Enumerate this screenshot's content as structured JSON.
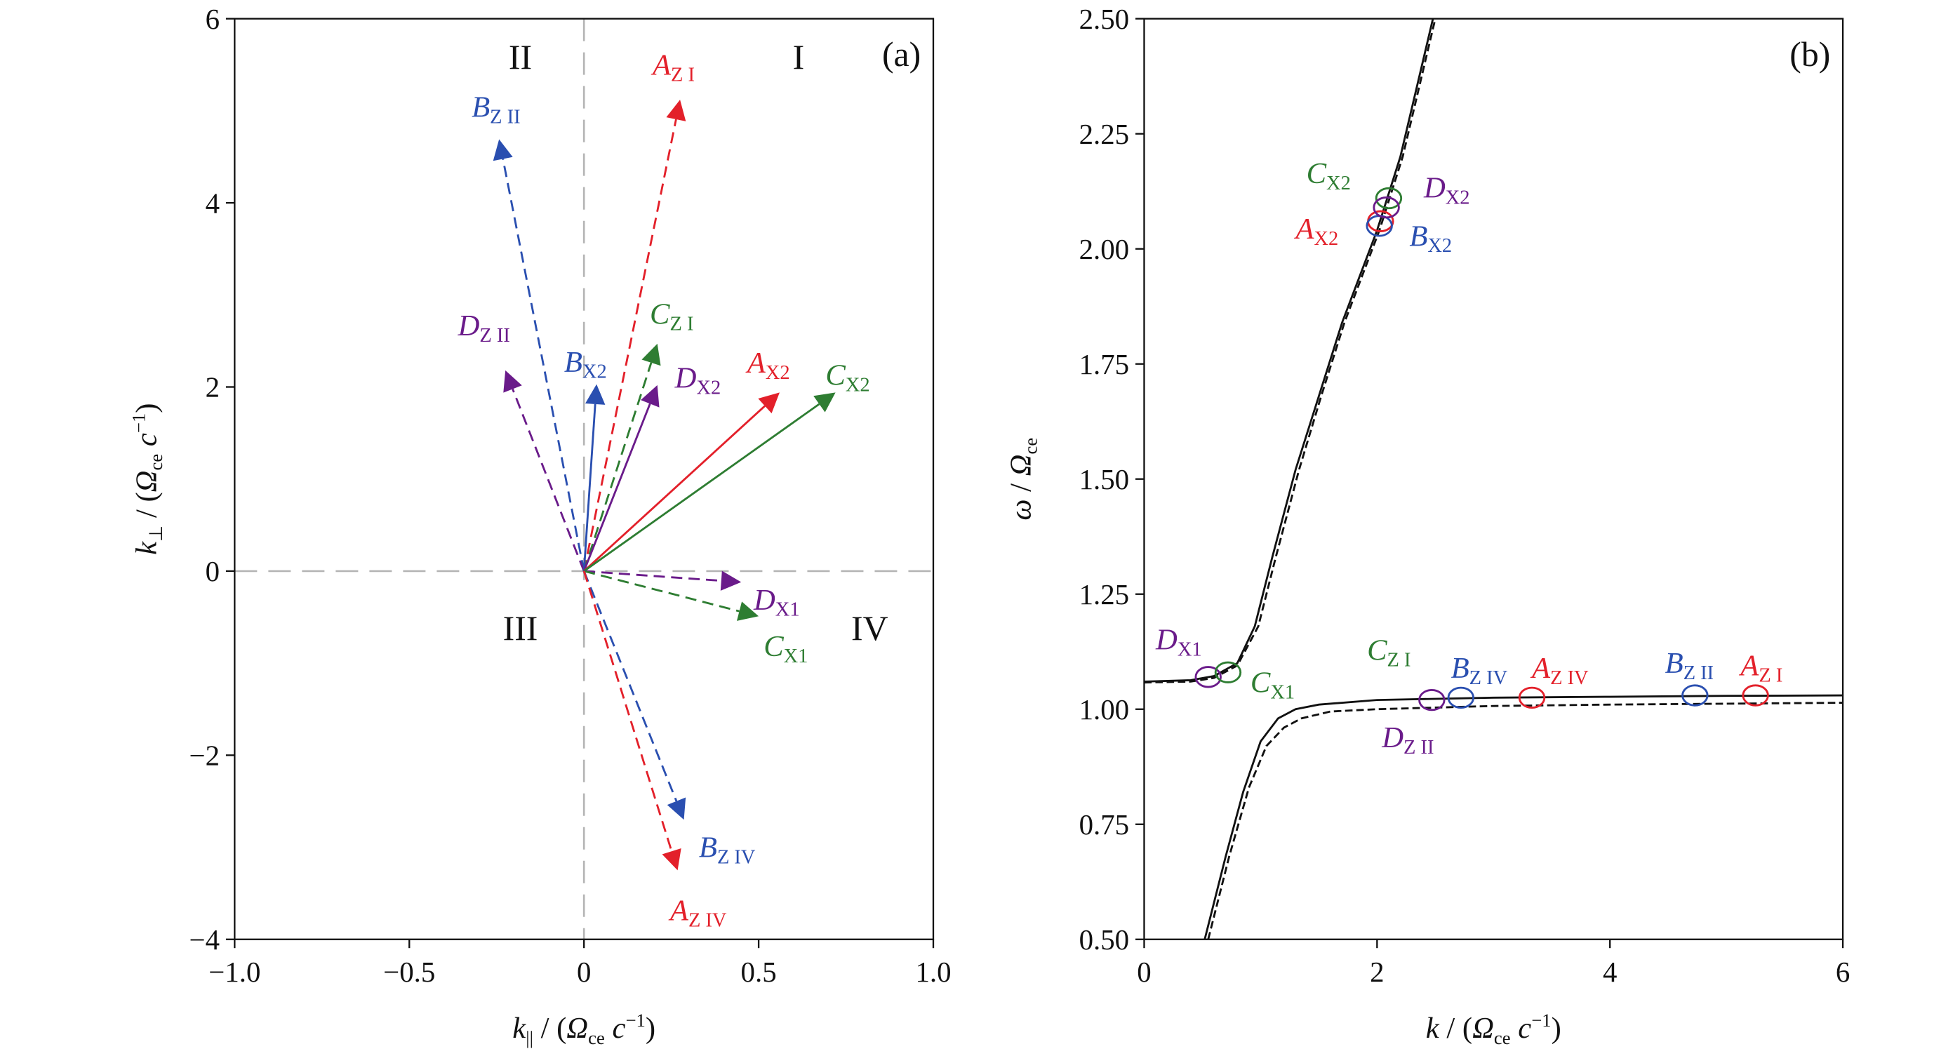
{
  "colors": {
    "A": "#e3202a",
    "B": "#2a4fb0",
    "C": "#2e7d32",
    "D": "#6a1b8a",
    "curve": "#111111",
    "zeroline": "#b5b5b5"
  },
  "chart_data": [
    {
      "type": "scatter",
      "panel_label": "(a)",
      "xlim": [
        -1.0,
        1.0
      ],
      "ylim": [
        -4,
        6
      ],
      "xticks": [
        "−1.0",
        "−0.5",
        "0",
        "0.5",
        "1.0"
      ],
      "xtick_values": [
        -1.0,
        -0.5,
        0,
        0.5,
        1.0
      ],
      "yticks": [
        "−4",
        "−2",
        "0",
        "2",
        "4",
        "6"
      ],
      "ytick_values": [
        -4,
        -2,
        0,
        2,
        4,
        6
      ],
      "xlabel": {
        "var": "k",
        "sub": "||",
        "sep": " / (",
        "omega": "Ω",
        "omega_sub": "ce",
        "c": " c",
        "exp": "−1",
        "close": ")"
      },
      "ylabel": {
        "var": "k",
        "sub": "⊥",
        "sep": " / (",
        "omega": "Ω",
        "omega_sub": "ce",
        "c": " c",
        "exp": "−1",
        "close": ")"
      },
      "quadrants": [
        "I",
        "II",
        "III",
        "IV"
      ],
      "grid": false,
      "vectors": [
        {
          "letter": "A",
          "sub": "Z I",
          "kpar": 0.275,
          "kperp": 5.12,
          "style": "dashed"
        },
        {
          "letter": "B",
          "sub": "Z II",
          "kpar": -0.243,
          "kperp": 4.69,
          "style": "dashed"
        },
        {
          "letter": "C",
          "sub": "Z I",
          "kpar": 0.21,
          "kperp": 2.47,
          "style": "dashed"
        },
        {
          "letter": "D",
          "sub": "Z II",
          "kpar": -0.225,
          "kperp": 2.18,
          "style": "dashed"
        },
        {
          "letter": "B",
          "sub": "X2",
          "kpar": 0.036,
          "kperp": 2.03,
          "style": "solid"
        },
        {
          "letter": "D",
          "sub": "X2",
          "kpar": 0.21,
          "kperp": 2.02,
          "style": "solid"
        },
        {
          "letter": "A",
          "sub": "X2",
          "kpar": 0.56,
          "kperp": 1.94,
          "style": "solid"
        },
        {
          "letter": "C",
          "sub": "X2",
          "kpar": 0.72,
          "kperp": 1.94,
          "style": "solid"
        },
        {
          "letter": "D",
          "sub": "X1",
          "kpar": 0.45,
          "kperp": -0.12,
          "style": "dashed"
        },
        {
          "letter": "C",
          "sub": "X1",
          "kpar": 0.5,
          "kperp": -0.49,
          "style": "dashed"
        },
        {
          "letter": "B",
          "sub": "Z IV",
          "kpar": 0.286,
          "kperp": -2.7,
          "style": "dashed"
        },
        {
          "letter": "A",
          "sub": "Z IV",
          "kpar": 0.268,
          "kperp": -3.25,
          "style": "dashed"
        }
      ]
    },
    {
      "type": "line",
      "panel_label": "(b)",
      "xlim": [
        0,
        6
      ],
      "ylim": [
        0.5,
        2.5
      ],
      "xticks": [
        "0",
        "2",
        "4",
        "6"
      ],
      "xtick_values": [
        0,
        2,
        4,
        6
      ],
      "yticks": [
        "0.50",
        "0.75",
        "1.00",
        "1.25",
        "1.50",
        "1.75",
        "2.00",
        "2.25",
        "2.50"
      ],
      "ytick_values": [
        0.5,
        0.75,
        1.0,
        1.25,
        1.5,
        1.75,
        2.0,
        2.25,
        2.5
      ],
      "xlabel": {
        "var": "k",
        "sep": " / (",
        "omega": "Ω",
        "omega_sub": "ce",
        "c": " c",
        "exp": "−1",
        "close": ")"
      },
      "ylabel": {
        "var": "ω",
        "sep": " / ",
        "omega": "Ω",
        "omega_sub": "ce"
      },
      "grid": false,
      "series": [
        {
          "style": "solid",
          "x": [
            0,
            0.4,
            0.6,
            0.8,
            0.95,
            1.1,
            1.3,
            1.5,
            1.7,
            2.0,
            2.2,
            2.48
          ],
          "y": [
            1.06,
            1.063,
            1.072,
            1.1,
            1.18,
            1.33,
            1.52,
            1.68,
            1.84,
            2.04,
            2.2,
            2.5
          ]
        },
        {
          "style": "dashed",
          "x": [
            0,
            0.4,
            0.6,
            0.8,
            0.98,
            1.13,
            1.33,
            1.52,
            1.72,
            2.02,
            2.22,
            2.5
          ],
          "y": [
            1.058,
            1.06,
            1.068,
            1.095,
            1.18,
            1.33,
            1.52,
            1.68,
            1.84,
            2.04,
            2.2,
            2.5
          ]
        },
        {
          "style": "solid",
          "x": [
            0.52,
            0.7,
            0.85,
            1.0,
            1.15,
            1.3,
            1.5,
            2.0,
            3.0,
            4.0,
            5.0,
            6.0
          ],
          "y": [
            0.5,
            0.68,
            0.82,
            0.93,
            0.98,
            1.0,
            1.01,
            1.02,
            1.025,
            1.027,
            1.029,
            1.03
          ]
        },
        {
          "style": "dashed",
          "x": [
            0.55,
            0.73,
            0.9,
            1.05,
            1.2,
            1.35,
            1.6,
            2.0,
            3.0,
            4.0,
            5.0,
            6.0
          ],
          "y": [
            0.5,
            0.68,
            0.83,
            0.92,
            0.96,
            0.98,
            0.995,
            1.0,
            1.007,
            1.01,
            1.012,
            1.014
          ]
        }
      ],
      "markers": [
        {
          "letter": "A",
          "sub": "X2",
          "k": 2.03,
          "omega": 2.06
        },
        {
          "letter": "B",
          "sub": "X2",
          "k": 2.02,
          "omega": 2.05
        },
        {
          "letter": "C",
          "sub": "X2",
          "k": 2.1,
          "omega": 2.11
        },
        {
          "letter": "D",
          "sub": "X2",
          "k": 2.08,
          "omega": 2.09
        },
        {
          "letter": "D",
          "sub": "X1",
          "k": 0.55,
          "omega": 1.07
        },
        {
          "letter": "C",
          "sub": "X1",
          "k": 0.72,
          "omega": 1.08
        },
        {
          "letter": "C",
          "sub": "Z I",
          "k": 2.45,
          "omega": 1.02
        },
        {
          "letter": "D",
          "sub": "Z II",
          "k": 2.47,
          "omega": 1.02
        },
        {
          "letter": "B",
          "sub": "Z IV",
          "k": 2.72,
          "omega": 1.025
        },
        {
          "letter": "A",
          "sub": "Z IV",
          "k": 3.33,
          "omega": 1.025
        },
        {
          "letter": "B",
          "sub": "Z II",
          "k": 4.73,
          "omega": 1.03
        },
        {
          "letter": "A",
          "sub": "Z I",
          "k": 5.25,
          "omega": 1.03
        }
      ]
    }
  ]
}
